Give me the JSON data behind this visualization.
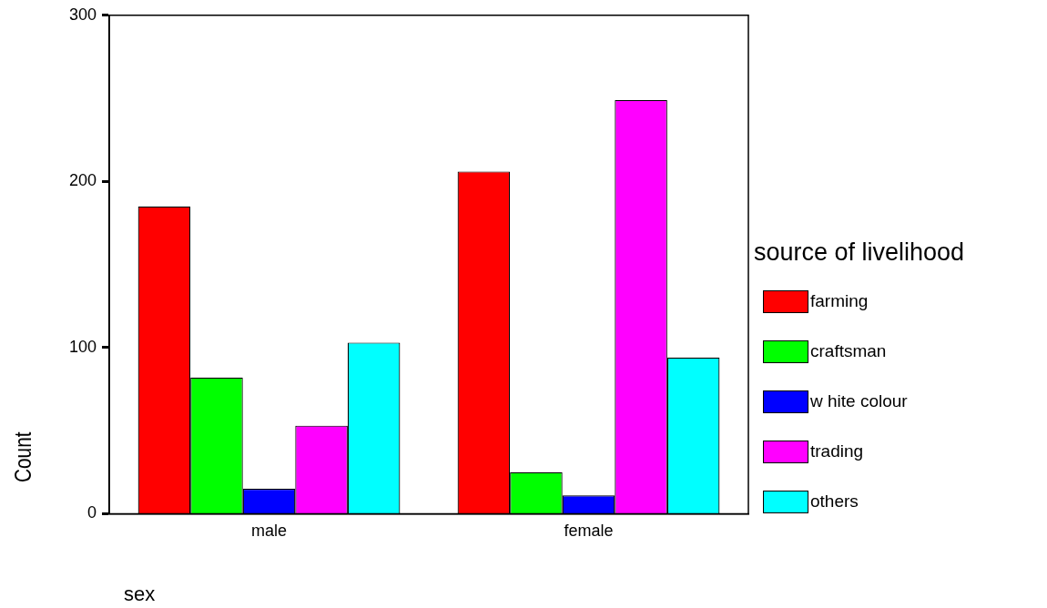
{
  "chart_data": {
    "type": "bar",
    "xlabel": "sex",
    "ylabel": "Count",
    "legend_title": "source of livelihood",
    "legend": "right",
    "grid": false,
    "categories": [
      "male",
      "female"
    ],
    "ylim": [
      0,
      300
    ],
    "yticks": [
      0,
      100,
      200,
      300
    ],
    "series": [
      {
        "name": "farming",
        "color": "#ff0000",
        "values": [
          185,
          206
        ]
      },
      {
        "name": "craftsman",
        "color": "#00ff00",
        "values": [
          82,
          25
        ]
      },
      {
        "name": "w hite colour",
        "color": "#0000ff",
        "values": [
          15,
          11
        ]
      },
      {
        "name": "trading",
        "color": "#ff00ff",
        "values": [
          53,
          249
        ]
      },
      {
        "name": "others",
        "color": "#00ffff",
        "values": [
          103,
          94
        ]
      }
    ]
  }
}
